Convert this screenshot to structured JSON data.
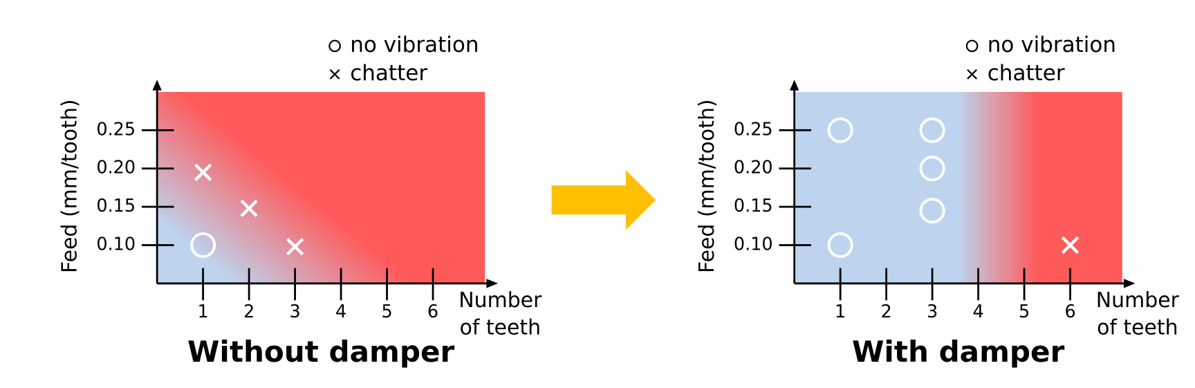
{
  "chart_data": [
    {
      "type": "scatter",
      "title": "Without damper",
      "y_label": "Feed (mm/tooth)",
      "x_label": [
        "Number",
        "of teeth"
      ],
      "xlim": [
        0,
        7.13
      ],
      "ylim": [
        0.05,
        0.3
      ],
      "xticks": [
        1,
        2,
        3,
        4,
        5,
        6
      ],
      "yticks": [
        {
          "value": 0.1,
          "label": "0.10"
        },
        0.15,
        {
          "value": 0.2,
          "label": "0.20"
        },
        0.25
      ],
      "stable_color": "#bed3ee",
      "chatter_color": "#ff5a5a",
      "region": "diagonal",
      "series": [
        {
          "name": "no vibration",
          "marker": "circle",
          "color": "#ffffff",
          "x": [
            1
          ],
          "values": [
            0.1
          ]
        },
        {
          "name": "chatter",
          "marker": "cross",
          "color": "#ffffff",
          "x": [
            1,
            2,
            3
          ],
          "values": [
            0.195,
            0.148,
            0.098
          ]
        }
      ]
    },
    {
      "type": "scatter",
      "title": "With damper",
      "y_label": "Feed (mm/tooth)",
      "x_label": [
        "Number",
        "of teeth"
      ],
      "xlim": [
        0,
        7.13
      ],
      "ylim": [
        0.05,
        0.3
      ],
      "xticks": [
        1,
        2,
        3,
        4,
        5,
        6
      ],
      "yticks": [
        {
          "value": 0.1,
          "label": "0.10"
        },
        0.15,
        {
          "value": 0.2,
          "label": "0.20"
        },
        0.25
      ],
      "stable_color": "#bed3ee",
      "chatter_color": "#ff5a5a",
      "region": "vertical",
      "series": [
        {
          "name": "no vibration",
          "marker": "circle",
          "color": "#ffffff",
          "x": [
            1,
            3,
            3,
            3,
            1
          ],
          "values": [
            0.25,
            0.25,
            0.2,
            0.145,
            0.1
          ]
        },
        {
          "name": "chatter",
          "marker": "cross",
          "color": "#ffffff",
          "x": [
            6
          ],
          "values": [
            0.1
          ]
        }
      ]
    }
  ]
}
